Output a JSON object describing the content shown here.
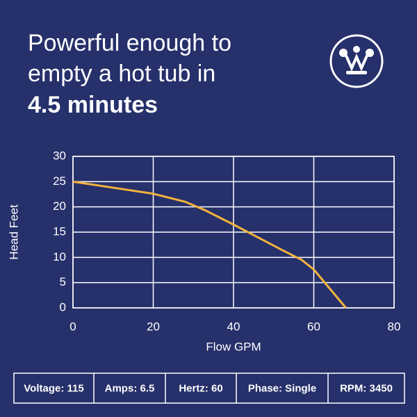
{
  "header": {
    "title_lines": [
      "Powerful enough to",
      "empty a hot tub in",
      "4.5 minutes"
    ]
  },
  "chart_data": {
    "type": "line",
    "x_label": "Flow GPM",
    "y_label": "Head Feet",
    "x": [
      0,
      10,
      20,
      28,
      33,
      40,
      46,
      52,
      57,
      60,
      68
    ],
    "series": [
      {
        "color": "#f2b33d",
        "values": [
          25,
          23.8,
          22.6,
          21,
          19.3,
          16.5,
          14,
          11.5,
          9.5,
          7.6,
          0
        ]
      }
    ],
    "xlim": [
      0,
      80
    ],
    "xticks": [
      0,
      20,
      40,
      60,
      80
    ],
    "ylim": [
      0,
      30
    ],
    "yticks": [
      0,
      5,
      10,
      15,
      20,
      25,
      30
    ],
    "grid": true
  },
  "specs": [
    "Voltage: 115",
    "Amps: 6.5",
    "Hertz: 60",
    "Phase: Single",
    "RPM: 3450"
  ]
}
